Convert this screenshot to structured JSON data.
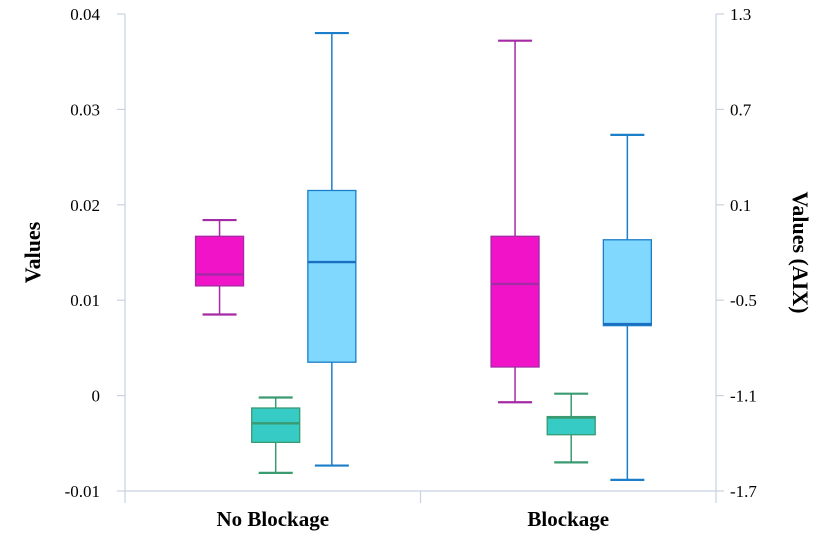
{
  "chart_data": {
    "type": "box",
    "categories": [
      "No Blockage",
      "Blockage"
    ],
    "ylabel": "Values",
    "y2label": "Values (AIX)",
    "ylim": [
      -0.01,
      0.04
    ],
    "y2lim": [
      -1.7,
      1.3
    ],
    "yticks": [
      "0.04",
      "0.03",
      "0.02",
      "0.01",
      "0",
      "-0.01"
    ],
    "y2ticks": [
      "1.3",
      "0.7",
      "0.1",
      "-0.5",
      "-1.1",
      "-1.7"
    ],
    "series": [
      {
        "axis": "left",
        "color": "#f013c8",
        "stroke": "#a52aa5",
        "median_color": "#a52aa5",
        "boxes": [
          {
            "min": 0.0085,
            "q1": 0.0115,
            "median": 0.0127,
            "q3": 0.0167,
            "max": 0.0184
          },
          {
            "min": -0.0007,
            "q1": 0.003,
            "median": 0.0117,
            "q3": 0.0167,
            "max": 0.0372
          }
        ]
      },
      {
        "axis": "left",
        "color": "#37cbc6",
        "stroke": "#3a9a70",
        "median_color": "#3a9a70",
        "boxes": [
          {
            "min": -0.0081,
            "q1": -0.0049,
            "median": -0.0029,
            "q3": -0.0013,
            "max": -0.0002
          },
          {
            "min": -0.007,
            "q1": -0.0041,
            "median": -0.0023,
            "q3": -0.0022,
            "max": 0.0002
          }
        ]
      },
      {
        "axis": "right",
        "color": "#80d8ff",
        "stroke": "#1a7ec8",
        "median_color": "#1a6fc0",
        "boxes": [
          {
            "min": -1.54,
            "q1": -0.89,
            "median": -0.26,
            "q3": 0.19,
            "max": 1.18
          },
          {
            "min": -1.63,
            "q1": -0.66,
            "median": -0.65,
            "q3": -0.12,
            "max": 0.54
          }
        ]
      }
    ]
  }
}
